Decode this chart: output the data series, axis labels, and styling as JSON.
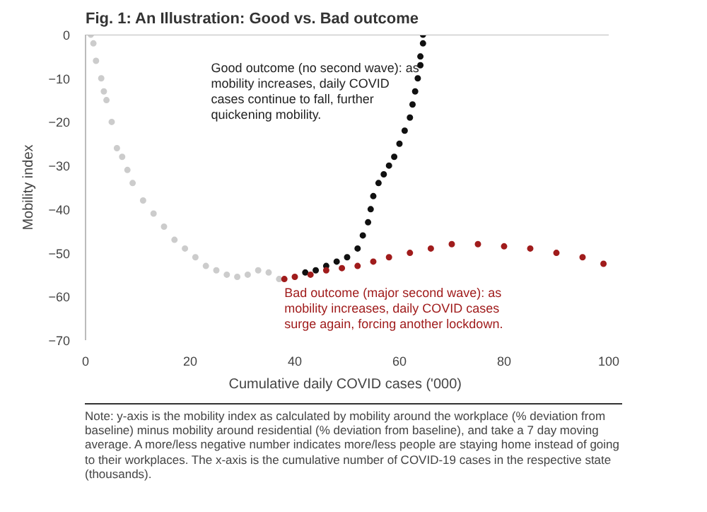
{
  "chart_data": {
    "type": "scatter",
    "title": "Fig. 1: An Illustration: Good vs. Bad outcome",
    "xlabel": "Cumulative  daily COVID cases ('000)",
    "ylabel": "Mobility index",
    "xlim": [
      0,
      100
    ],
    "xticks": [
      0,
      20,
      40,
      60,
      80,
      100
    ],
    "ylim": [
      -70,
      0
    ],
    "yticks": [
      0,
      -10,
      -20,
      -30,
      -40,
      -50,
      -60,
      -70
    ],
    "grid": false,
    "marker": "circle",
    "ref_lines": [
      {
        "axis": "y",
        "value": 0,
        "color": "#bbbbbb"
      }
    ],
    "series": [
      {
        "color": "#cccccc",
        "x": [
          1,
          1.5,
          2,
          3,
          3.5,
          4,
          5,
          6,
          7,
          8,
          9,
          11,
          13,
          15,
          17,
          19,
          21,
          23,
          25,
          27,
          29,
          31,
          33,
          35,
          37
        ],
        "values": [
          0,
          -2,
          -6,
          -10,
          -13,
          -15,
          -20,
          -26,
          -28,
          -31,
          -34,
          -38,
          -41,
          -44,
          -47,
          -49,
          -51,
          -53,
          -54,
          -55,
          -55.5,
          -55,
          -54,
          -54.5,
          -56
        ]
      },
      {
        "color": "#111111",
        "x": [
          42,
          44,
          46,
          48,
          50,
          52,
          53,
          54,
          54.5,
          55,
          56,
          57,
          58,
          59,
          60,
          61,
          62,
          62.5,
          63,
          63.5,
          64,
          64,
          64.5,
          64.5
        ],
        "values": [
          -54.5,
          -54,
          -53,
          -52,
          -51,
          -49,
          -46,
          -43,
          -40,
          -37,
          -34,
          -32,
          -30,
          -28,
          -25,
          -22,
          -19,
          -16,
          -13,
          -10,
          -7,
          -5,
          -2,
          0
        ]
      },
      {
        "color": "#a01c1c",
        "x": [
          38,
          40,
          43,
          46,
          49,
          52,
          55,
          58,
          62,
          66,
          70,
          75,
          80,
          85,
          90,
          95,
          99
        ],
        "values": [
          -56,
          -55.5,
          -55,
          -54,
          -53.5,
          -53,
          -52,
          -51,
          -50,
          -49,
          -48,
          -48,
          -48.5,
          -49,
          -50,
          -51,
          -52.5
        ]
      }
    ],
    "annotations": [
      "Good outcome (no second wave): as mobility increases, daily COVID cases continue to fall, further quickening mobility.",
      "Bad outcome (major second wave): as mobility increases, daily COVID cases surge again, forcing another lockdown.",
      "Note: y-axis is the mobility index as calculated by mobility around the workplace (% deviation from baseline) minus mobility around residential (% deviation from baseline), and take a 7 day moving average. A more/less negative number indicates more/less people are staying home instead of going to their workplaces. The x-axis is the cumulative number of COVID-19 cases in the respective state (thousands)."
    ]
  }
}
